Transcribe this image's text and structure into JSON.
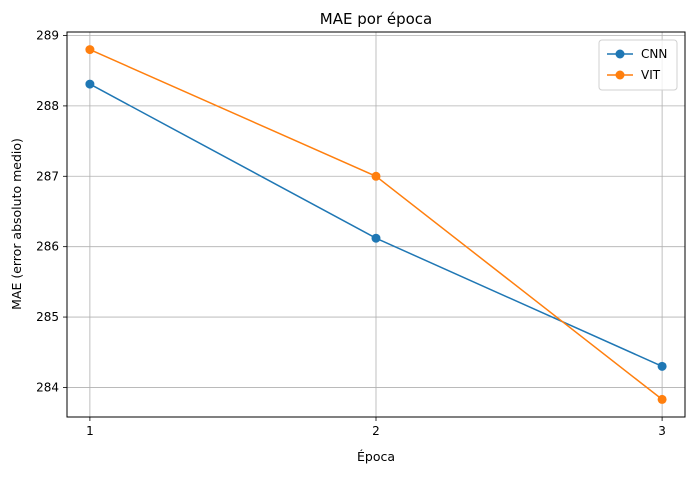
{
  "chart_data": {
    "type": "line",
    "title": "MAE por época",
    "xlabel": "Época",
    "ylabel": "MAE (error absoluto medio)",
    "x": [
      1,
      2,
      3
    ],
    "xticks": [
      "1",
      "2",
      "3"
    ],
    "yticks": [
      "284",
      "285",
      "286",
      "287",
      "288",
      "289"
    ],
    "xlim": [
      0.92,
      3.08
    ],
    "ylim": [
      283.58,
      289.05
    ],
    "grid": true,
    "legend_position": "top-right",
    "series": [
      {
        "name": "CNN",
        "values": [
          288.31,
          286.12,
          284.3
        ],
        "color": "#1f77b4",
        "marker": "circle"
      },
      {
        "name": "VIT",
        "values": [
          288.8,
          287.0,
          283.83
        ],
        "color": "#ff7f0e",
        "marker": "circle"
      }
    ]
  }
}
